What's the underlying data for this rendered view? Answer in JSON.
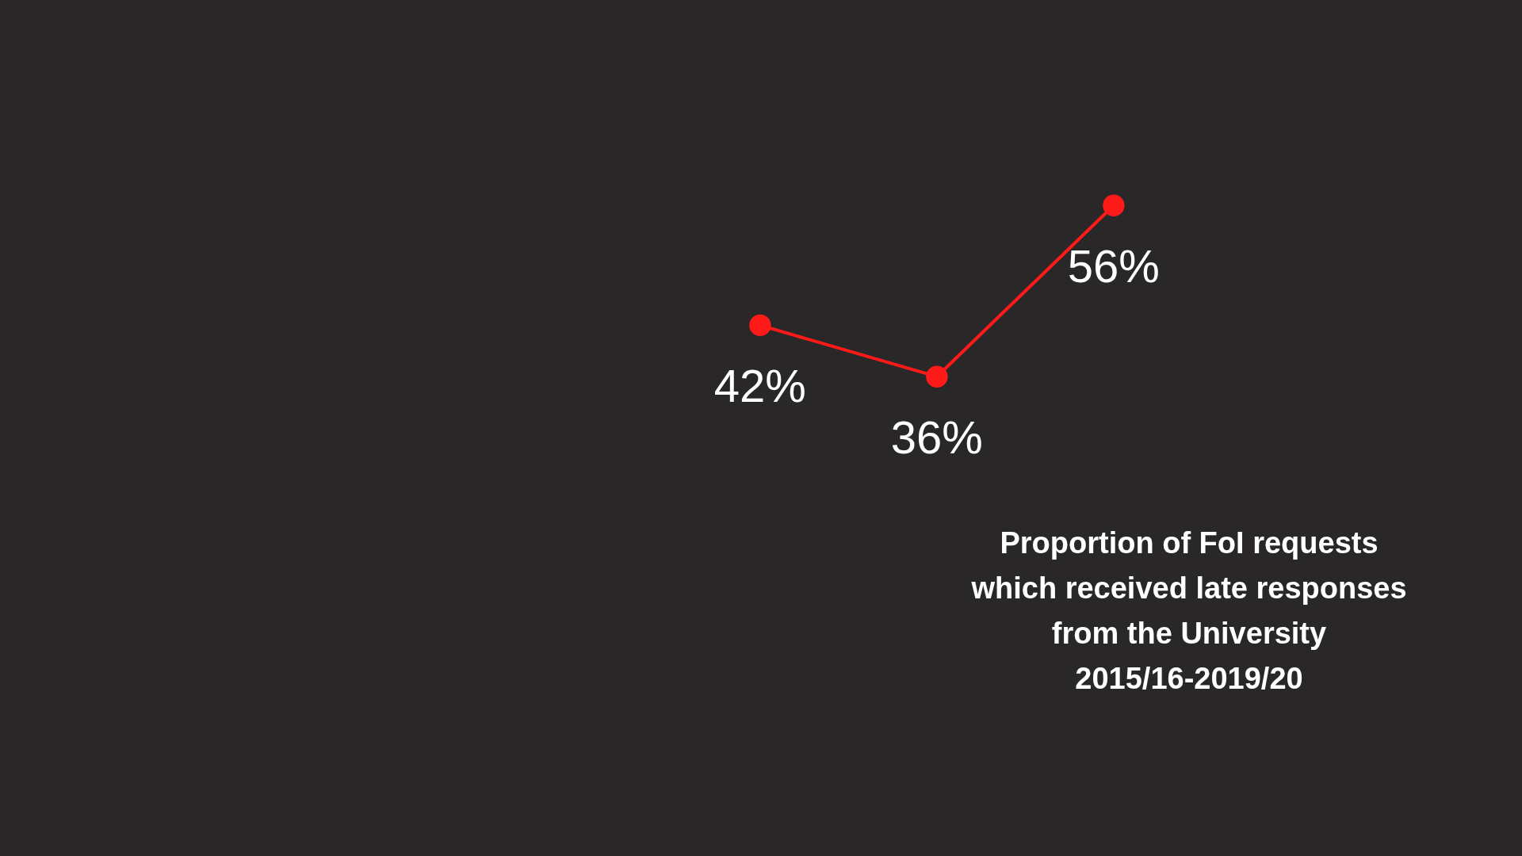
{
  "chart_data": {
    "type": "line",
    "title": "Proportion of FoI requests\nwhich received late responses\nfrom the University\n2015/16-2019/20",
    "categories": [
      null,
      null,
      null
    ],
    "series": [
      {
        "color": "#ff1a1a",
        "values": [
          42,
          36,
          56
        ],
        "value_labels": [
          "42%",
          "36%",
          "56%"
        ]
      }
    ],
    "marker": "circle",
    "line_style": "solid",
    "grid": false,
    "tick_labels": false
  }
}
